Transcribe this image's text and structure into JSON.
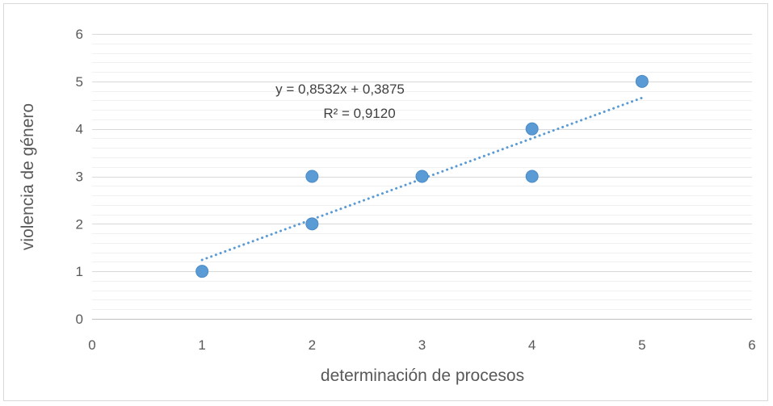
{
  "chart_data": {
    "type": "scatter",
    "xlabel": "determinación de procesos",
    "ylabel": "violencia de género",
    "xlim": [
      0,
      6
    ],
    "ylim": [
      0,
      6
    ],
    "x_ticks": [
      "0",
      "1",
      "2",
      "3",
      "4",
      "5",
      "6"
    ],
    "y_ticks": [
      "0",
      "1",
      "2",
      "3",
      "4",
      "5",
      "6"
    ],
    "grid": "horizontal major and minor",
    "legend": "none",
    "series": [
      {
        "points": [
          {
            "x": 1,
            "y": 1
          },
          {
            "x": 2,
            "y": 2
          },
          {
            "x": 2,
            "y": 3
          },
          {
            "x": 3,
            "y": 3
          },
          {
            "x": 4,
            "y": 4
          },
          {
            "x": 4,
            "y": 3
          },
          {
            "x": 5,
            "y": 5
          }
        ],
        "color": "#5b9bd5"
      }
    ],
    "trendline": {
      "type": "linear",
      "slope": 0.8532,
      "intercept": 0.3875,
      "x_range": [
        1,
        5
      ],
      "style": "dotted",
      "color": "#5b9bd5",
      "equation": "y = 0,8532x + 0,3875",
      "r_squared": "R² = 0,9120"
    }
  }
}
